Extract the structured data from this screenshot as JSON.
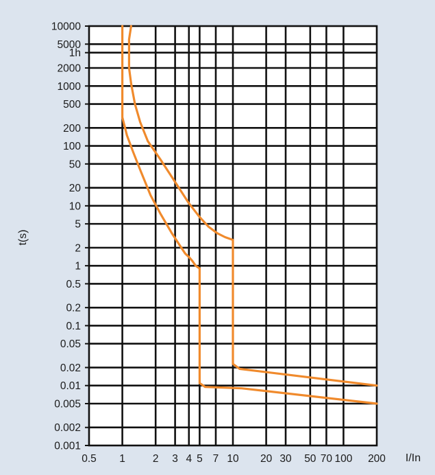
{
  "chart_data": {
    "type": "line",
    "title": "",
    "xlabel": "I/In",
    "ylabel": "t(s)",
    "x_scale": "log",
    "y_scale": "log",
    "xlim": [
      0.5,
      200
    ],
    "ylim": [
      0.001,
      10000
    ],
    "x_ticks": [
      {
        "value": 0.5,
        "label": "0.5"
      },
      {
        "value": 1,
        "label": "1"
      },
      {
        "value": 2,
        "label": "2"
      },
      {
        "value": 3,
        "label": "3"
      },
      {
        "value": 4,
        "label": "4"
      },
      {
        "value": 5,
        "label": "5"
      },
      {
        "value": 7,
        "label": "7"
      },
      {
        "value": 10,
        "label": "10"
      },
      {
        "value": 20,
        "label": "20"
      },
      {
        "value": 30,
        "label": "30"
      },
      {
        "value": 50,
        "label": "50"
      },
      {
        "value": 70,
        "label": "70"
      },
      {
        "value": 100,
        "label": "100"
      },
      {
        "value": 200,
        "label": "200"
      }
    ],
    "y_ticks": [
      {
        "value": 10000,
        "label": "10000"
      },
      {
        "value": 5000,
        "label": "5000"
      },
      {
        "value": 3600,
        "label": "1h"
      },
      {
        "value": 2000,
        "label": "2000"
      },
      {
        "value": 1000,
        "label": "1000"
      },
      {
        "value": 500,
        "label": "500"
      },
      {
        "value": 200,
        "label": "200"
      },
      {
        "value": 100,
        "label": "100"
      },
      {
        "value": 50,
        "label": "50"
      },
      {
        "value": 20,
        "label": "20"
      },
      {
        "value": 10,
        "label": "10"
      },
      {
        "value": 5,
        "label": "5"
      },
      {
        "value": 2,
        "label": "2"
      },
      {
        "value": 1,
        "label": "1"
      },
      {
        "value": 0.5,
        "label": "0.5"
      },
      {
        "value": 0.2,
        "label": "0.2"
      },
      {
        "value": 0.1,
        "label": "0.1"
      },
      {
        "value": 0.05,
        "label": "0.05"
      },
      {
        "value": 0.02,
        "label": "0.02"
      },
      {
        "value": 0.01,
        "label": "0.01"
      },
      {
        "value": 0.005,
        "label": "0.005"
      },
      {
        "value": 0.002,
        "label": "0.002"
      },
      {
        "value": 0.001,
        "label": "0.001"
      }
    ],
    "grid": true,
    "legend": "none",
    "colors": {
      "curve": "#f08a2c",
      "grid": "#111111",
      "background": "#dce4ee",
      "plot_background": "#ffffff"
    },
    "series": [
      {
        "points": [
          [
            1.0,
            10000
          ],
          [
            1.0,
            300
          ],
          [
            1.1,
            150
          ],
          [
            1.25,
            80
          ],
          [
            1.45,
            40
          ],
          [
            1.8,
            15
          ],
          [
            2.2,
            7.5
          ],
          [
            2.8,
            3.5
          ],
          [
            3.3,
            2.2
          ],
          [
            3.7,
            1.6
          ],
          [
            4.0,
            1.4
          ],
          [
            4.3,
            1.2
          ],
          [
            4.6,
            1.0
          ],
          [
            5.0,
            0.9
          ],
          [
            5.0,
            0.011
          ],
          [
            5.6,
            0.0095
          ],
          [
            12,
            0.009
          ],
          [
            200,
            0.005
          ]
        ]
      },
      {
        "points": [
          [
            1.2,
            10000
          ],
          [
            1.15,
            6000
          ],
          [
            1.15,
            2000
          ],
          [
            1.2,
            1100
          ],
          [
            1.3,
            500
          ],
          [
            1.45,
            250
          ],
          [
            1.7,
            120
          ],
          [
            2.2,
            60
          ],
          [
            3.0,
            25
          ],
          [
            4.0,
            11
          ],
          [
            5.0,
            6.5
          ],
          [
            6.0,
            4.5
          ],
          [
            7.2,
            3.5
          ],
          [
            8.5,
            3.0
          ],
          [
            10,
            2.7
          ],
          [
            10,
            0.023
          ],
          [
            11.5,
            0.019
          ],
          [
            200,
            0.01
          ]
        ]
      }
    ]
  }
}
